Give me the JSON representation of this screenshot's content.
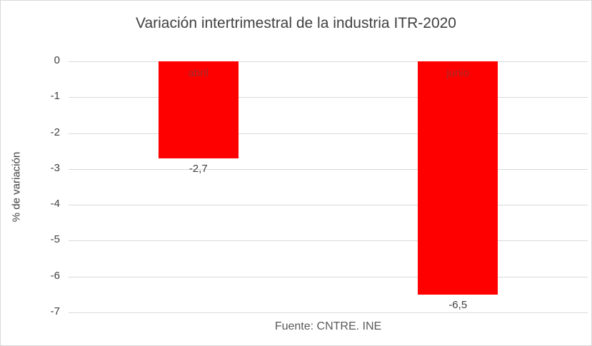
{
  "chart_data": {
    "type": "bar",
    "title": "Variación intertrimestral de la industria ITR-2020",
    "ylabel": "% de variación",
    "footer": "Fuente: CNTRE. INE",
    "categories": [
      "abril",
      "junio"
    ],
    "values": [
      -2.7,
      -6.5
    ],
    "value_labels": [
      "-2,7",
      "-6,5"
    ],
    "yticks": [
      0,
      -1,
      -2,
      -3,
      -4,
      -5,
      -6,
      -7
    ],
    "ylim": [
      -7,
      0
    ],
    "grid": true,
    "legend": false,
    "colors": {
      "bar": "#ff0000",
      "bar_label": "#9c2f2f",
      "axis_text": "#404040",
      "gridline": "#d9d9d9",
      "title": "#404040",
      "footer": "#595959"
    }
  }
}
